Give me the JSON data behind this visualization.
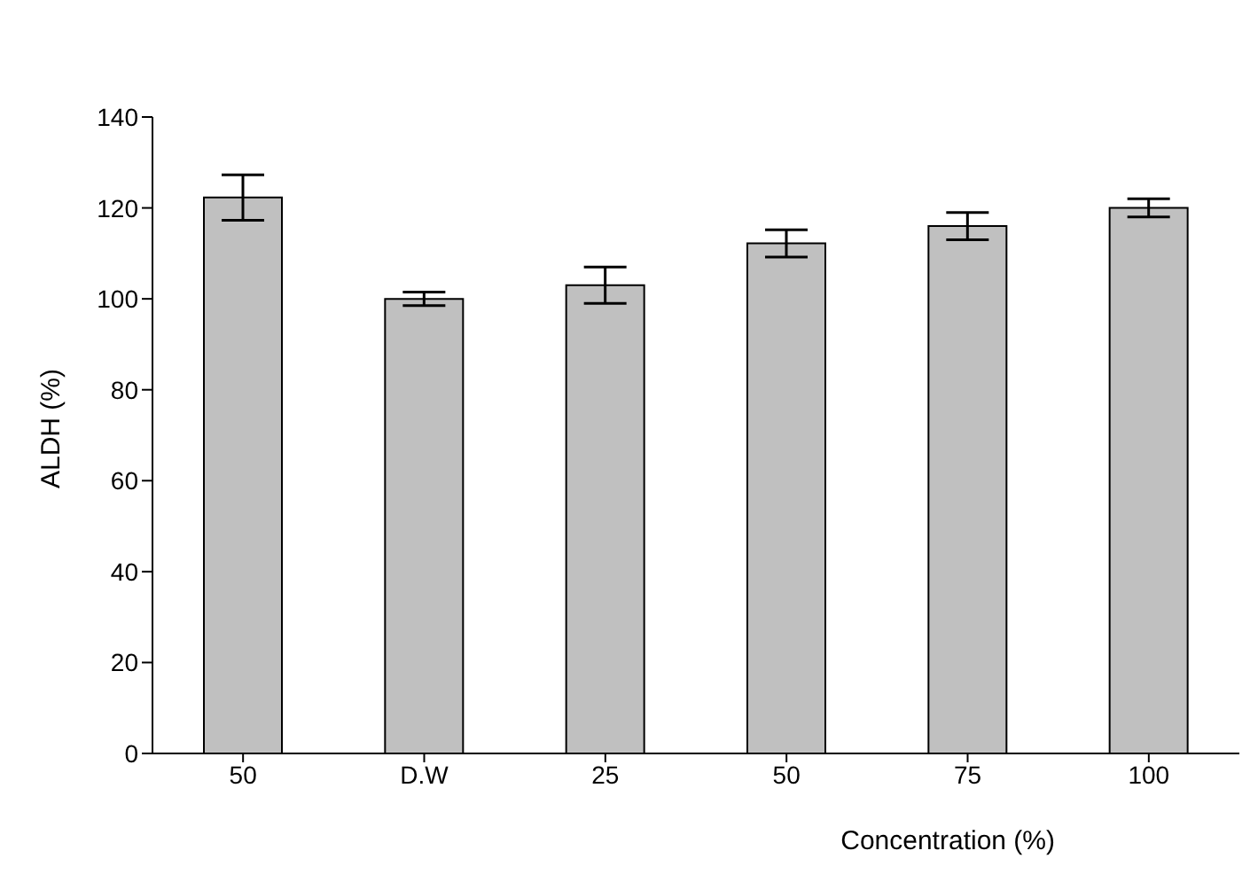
{
  "chart_data": {
    "type": "bar",
    "xlabel": "Concentration  (%)",
    "ylabel": "ALDH (%)",
    "categories": [
      "50",
      "D.W",
      "25",
      "50",
      "75",
      "100"
    ],
    "values": [
      122.3,
      100,
      103,
      112.2,
      116,
      120
    ],
    "errors": [
      5,
      1.5,
      4,
      3,
      3,
      2
    ],
    "color": "#c0c0c0",
    "ylim": [
      0,
      140
    ],
    "yticks": [
      0,
      20,
      40,
      60,
      80,
      100,
      120,
      140
    ],
    "grid": false,
    "legend": false
  }
}
